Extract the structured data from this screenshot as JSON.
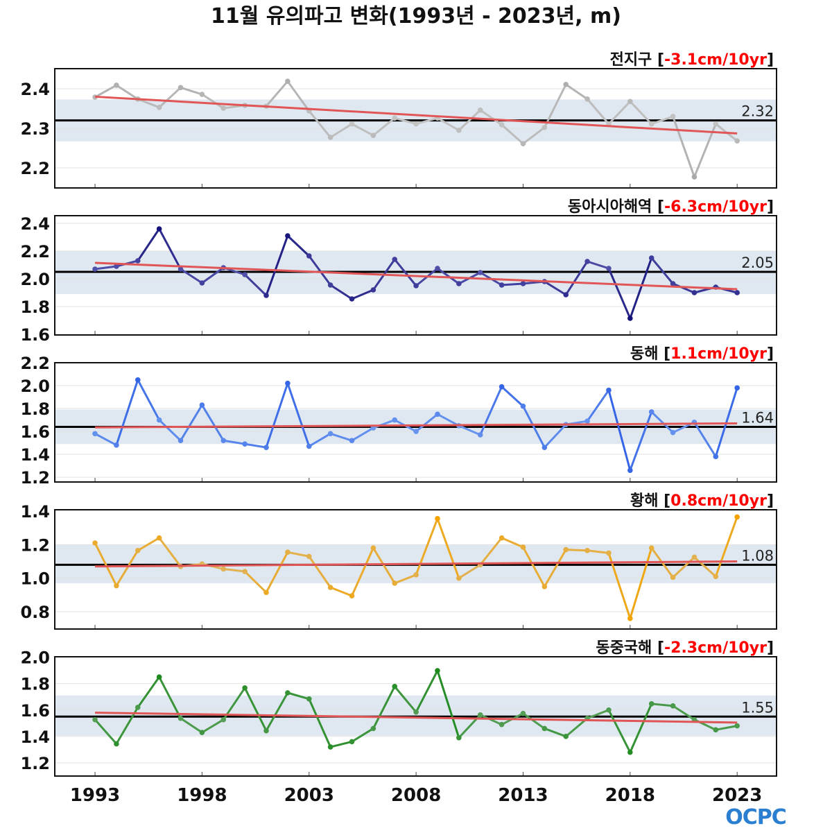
{
  "chart_data": {
    "type": "line",
    "title": "11월 유의파고 변화(1993년 - 2023년, m)",
    "x": [
      1993,
      1994,
      1995,
      1996,
      1997,
      1998,
      1999,
      2000,
      2001,
      2002,
      2003,
      2004,
      2005,
      2006,
      2007,
      2008,
      2009,
      2010,
      2011,
      2012,
      2013,
      2014,
      2015,
      2016,
      2017,
      2018,
      2019,
      2020,
      2021,
      2022,
      2023
    ],
    "xticks": [
      "1993",
      "1998",
      "2003",
      "2008",
      "2013",
      "2018",
      "2023"
    ],
    "xlim": [
      1991.12,
      2024.84
    ],
    "panels": [
      {
        "name": "전지구",
        "trend_label": "-3.1cm/10yr",
        "mean": 2.32,
        "mean_label": "2.32",
        "band": [
          2.267,
          2.373
        ],
        "trend_line": [
          2.38,
          2.287
        ],
        "ylim": [
          2.149,
          2.451
        ],
        "yticks": [
          "2.2",
          "2.3",
          "2.4"
        ],
        "ytick_values": [
          2.2,
          2.3,
          2.4
        ],
        "color": "#c4c4c4",
        "dark": "#a9a9a9",
        "values": [
          2.379,
          2.409,
          2.374,
          2.353,
          2.403,
          2.386,
          2.351,
          2.358,
          2.356,
          2.419,
          2.344,
          2.277,
          2.311,
          2.282,
          2.326,
          2.311,
          2.326,
          2.295,
          2.346,
          2.309,
          2.261,
          2.302,
          2.411,
          2.374,
          2.311,
          2.368,
          2.311,
          2.33,
          2.177,
          2.311,
          2.268
        ]
      },
      {
        "name": "동아시아해역",
        "trend_label": "-6.3cm/10yr",
        "mean": 2.05,
        "mean_label": "2.05",
        "band": [
          1.89,
          2.2
        ],
        "trend_line": [
          2.115,
          1.925
        ],
        "ylim": [
          1.595,
          2.455
        ],
        "yticks": [
          "1.6",
          "1.8",
          "2.0",
          "2.2",
          "2.4"
        ],
        "ytick_values": [
          1.6,
          1.8,
          2.0,
          2.2,
          2.4
        ],
        "color": "#5555ad",
        "dark": "#14127a",
        "values": [
          2.07,
          2.09,
          2.13,
          2.36,
          2.07,
          1.97,
          2.08,
          2.03,
          1.88,
          2.31,
          2.165,
          1.955,
          1.855,
          1.92,
          2.14,
          1.95,
          2.075,
          1.965,
          2.045,
          1.955,
          1.965,
          1.98,
          1.885,
          2.125,
          2.075,
          1.715,
          2.15,
          1.965,
          1.9,
          1.94,
          1.9
        ]
      },
      {
        "name": "동해",
        "trend_label": "1.1cm/10yr",
        "mean": 1.64,
        "mean_label": "1.64",
        "band": [
          1.49,
          1.79
        ],
        "trend_line": [
          1.635,
          1.67
        ],
        "ylim": [
          1.158,
          2.2
        ],
        "yticks": [
          "1.2",
          "1.4",
          "1.6",
          "1.8",
          "2.0",
          "2.2"
        ],
        "ytick_values": [
          1.2,
          1.4,
          1.6,
          1.8,
          2.0,
          2.2
        ],
        "color": "#6d9af0",
        "dark": "#3565e6",
        "values": [
          1.58,
          1.48,
          2.05,
          1.7,
          1.52,
          1.83,
          1.52,
          1.49,
          1.46,
          2.02,
          1.47,
          1.58,
          1.52,
          1.63,
          1.7,
          1.6,
          1.75,
          1.65,
          1.57,
          1.99,
          1.82,
          1.46,
          1.66,
          1.69,
          1.96,
          1.26,
          1.77,
          1.59,
          1.68,
          1.38,
          1.98
        ]
      },
      {
        "name": "황해",
        "trend_label": "0.8cm/10yr",
        "mean": 1.08,
        "mean_label": "1.08",
        "band": [
          0.97,
          1.2
        ],
        "trend_line": [
          1.07,
          1.1
        ],
        "ylim": [
          0.697,
          1.408
        ],
        "yticks": [
          "0.8",
          "1.0",
          "1.2",
          "1.4"
        ],
        "ytick_values": [
          0.8,
          1.0,
          1.2,
          1.4
        ],
        "color": "#deb460",
        "dark": "#f5a300",
        "values": [
          1.21,
          0.955,
          1.165,
          1.24,
          1.07,
          1.085,
          1.055,
          1.04,
          0.915,
          1.155,
          1.13,
          0.945,
          0.895,
          1.18,
          0.97,
          1.02,
          1.355,
          1.0,
          1.08,
          1.24,
          1.185,
          0.95,
          1.17,
          1.165,
          1.15,
          0.76,
          1.18,
          1.005,
          1.125,
          1.01,
          1.365
        ]
      },
      {
        "name": "동중국해",
        "trend_label": "-2.3cm/10yr",
        "mean": 1.55,
        "mean_label": "1.55",
        "band": [
          1.405,
          1.71
        ],
        "trend_line": [
          1.58,
          1.505
        ],
        "ylim": [
          1.1,
          2.003
        ],
        "yticks": [
          "1.2",
          "1.4",
          "1.6",
          "1.8",
          "2.0"
        ],
        "ytick_values": [
          1.2,
          1.4,
          1.6,
          1.8,
          2.0
        ],
        "color": "#5aa05a",
        "dark": "#1e8a1e",
        "values": [
          1.527,
          1.344,
          1.62,
          1.85,
          1.537,
          1.43,
          1.527,
          1.767,
          1.443,
          1.73,
          1.684,
          1.32,
          1.36,
          1.46,
          1.778,
          1.584,
          1.898,
          1.39,
          1.563,
          1.49,
          1.574,
          1.46,
          1.4,
          1.537,
          1.6,
          1.28,
          1.647,
          1.631,
          1.527,
          1.45,
          1.48
        ]
      }
    ],
    "trend_color": "#e05555",
    "band_color": "#dfe8f1",
    "logo": "OCPC"
  }
}
